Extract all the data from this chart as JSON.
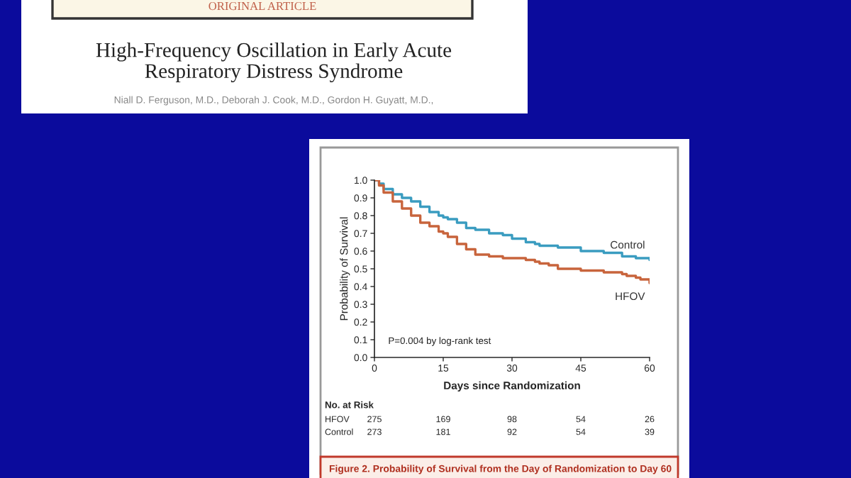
{
  "chart_data": {
    "type": "step",
    "xlabel": "Days since Randomization",
    "ylabel": "Probability of Survival",
    "x": [
      0,
      1,
      2,
      4,
      6,
      8,
      10,
      12,
      14,
      15,
      16,
      18,
      20,
      22,
      25,
      28,
      30,
      33,
      35,
      36,
      38,
      40,
      45,
      50,
      54,
      55,
      57,
      58,
      60
    ],
    "series": [
      {
        "name": "Control",
        "color": "#3a9cc0",
        "values": [
          1.0,
          0.98,
          0.95,
          0.92,
          0.9,
          0.88,
          0.85,
          0.82,
          0.8,
          0.79,
          0.78,
          0.76,
          0.73,
          0.72,
          0.7,
          0.69,
          0.67,
          0.65,
          0.64,
          0.63,
          0.63,
          0.62,
          0.6,
          0.59,
          0.57,
          0.57,
          0.56,
          0.56,
          0.55
        ]
      },
      {
        "name": "HFOV",
        "color": "#c8643c",
        "values": [
          1.0,
          0.97,
          0.93,
          0.88,
          0.84,
          0.8,
          0.76,
          0.74,
          0.71,
          0.7,
          0.68,
          0.64,
          0.61,
          0.58,
          0.57,
          0.56,
          0.56,
          0.55,
          0.54,
          0.53,
          0.52,
          0.5,
          0.49,
          0.48,
          0.47,
          0.46,
          0.45,
          0.44,
          0.42
        ]
      }
    ],
    "xlim": [
      0,
      60
    ],
    "ylim": [
      0,
      1.0
    ],
    "xticks": [
      0,
      15,
      30,
      45,
      60
    ],
    "yticks": [
      {
        "value": 0,
        "label": "0.0"
      },
      0.1,
      0.2,
      0.3,
      0.4,
      0.5,
      0.6,
      0.7,
      0.8,
      0.9,
      {
        "value": 1,
        "label": "1.0"
      }
    ],
    "grid": false,
    "legend": false,
    "annotations": [
      "ORIGINAL ARTICLE",
      "High-Frequency Oscillation in Early Acute\nRespiratory Distress Syndrome",
      "Niall D. Ferguson, M.D., Deborah J. Cook, M.D., Gordon H. Guyatt, M.D.,",
      "P=0.004 by log-rank test",
      "No. at Risk",
      "HFOV",
      "Control",
      "275",
      "169",
      "98",
      "54",
      "26",
      "273",
      "181",
      "92",
      "54",
      "39",
      "Figure 2. Probability of Survival from the Day of Randomization to Day 60"
    ]
  }
}
